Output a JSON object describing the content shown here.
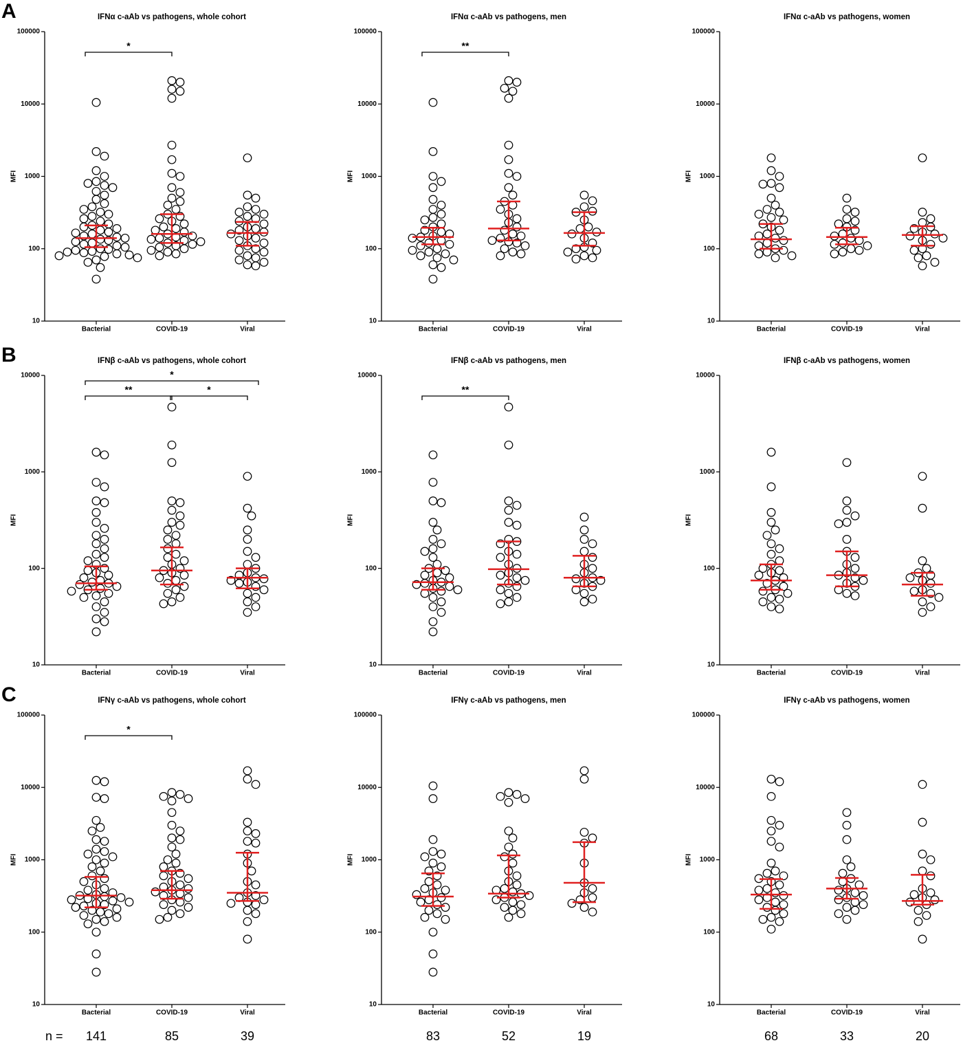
{
  "panels": [
    "A",
    "B",
    "C"
  ],
  "n_label": "n =",
  "counts": [
    [
      141,
      85,
      39
    ],
    [
      83,
      52,
      19
    ],
    [
      68,
      33,
      20
    ]
  ],
  "chart_data": [
    {
      "type": "dotplot",
      "title": "IFNα c-aAb vs pathogens, whole cohort",
      "ylabel": "MFI",
      "log": true,
      "ylim": [
        10,
        100000
      ],
      "yticks": [
        10,
        100,
        1000,
        10000,
        100000
      ],
      "categories": [
        "Bacterial",
        "COVID-19",
        "Viral"
      ],
      "summary_color": "#e02020",
      "values": [
        [
          10500,
          2200,
          1900,
          1200,
          1000,
          850,
          800,
          750,
          700,
          620,
          550,
          480,
          420,
          380,
          350,
          320,
          300,
          280,
          260,
          240,
          220,
          210,
          200,
          190,
          180,
          170,
          165,
          160,
          150,
          145,
          140,
          135,
          130,
          125,
          120,
          115,
          110,
          105,
          100,
          98,
          95,
          92,
          90,
          88,
          85,
          82,
          80,
          78,
          75,
          70,
          65,
          55,
          38
        ],
        [
          21000,
          20000,
          16000,
          15000,
          12000,
          2700,
          1700,
          1100,
          1000,
          700,
          600,
          500,
          450,
          400,
          350,
          300,
          280,
          260,
          240,
          220,
          200,
          190,
          180,
          170,
          160,
          150,
          145,
          140,
          135,
          130,
          125,
          120,
          115,
          110,
          105,
          100,
          95,
          90,
          85,
          80
        ],
        [
          1800,
          550,
          500,
          380,
          350,
          320,
          300,
          280,
          260,
          240,
          220,
          200,
          190,
          180,
          170,
          160,
          150,
          140,
          130,
          120,
          110,
          100,
          95,
          90,
          80,
          75,
          70,
          65,
          60,
          58
        ]
      ],
      "median": [
        140,
        160,
        165
      ],
      "q1": [
        105,
        120,
        110
      ],
      "q3": [
        210,
        300,
        235
      ],
      "annotations": [
        {
          "label": "*",
          "from": 0,
          "to": 1,
          "color": "#000"
        }
      ]
    },
    {
      "type": "dotplot",
      "title": "IFNα c-aAb vs pathogens, men",
      "ylabel": "MFI",
      "log": true,
      "ylim": [
        10,
        100000
      ],
      "yticks": [
        10,
        100,
        1000,
        10000,
        100000
      ],
      "categories": [
        "Bacterial",
        "COVID-19",
        "Viral"
      ],
      "summary_color": "#e02020",
      "values": [
        [
          10500,
          2200,
          1000,
          850,
          700,
          480,
          400,
          350,
          300,
          270,
          250,
          220,
          200,
          180,
          170,
          160,
          150,
          145,
          140,
          130,
          120,
          115,
          110,
          100,
          95,
          90,
          85,
          80,
          75,
          70,
          60,
          55,
          38
        ],
        [
          21000,
          20000,
          16500,
          15000,
          12000,
          2700,
          1700,
          1100,
          1000,
          700,
          550,
          450,
          400,
          350,
          300,
          260,
          230,
          200,
          180,
          160,
          150,
          140,
          130,
          125,
          120,
          110,
          100,
          90,
          85,
          80
        ],
        [
          550,
          460,
          380,
          330,
          320,
          250,
          200,
          190,
          170,
          160,
          140,
          120,
          105,
          100,
          95,
          90,
          80,
          75,
          72
        ]
      ],
      "median": [
        145,
        190,
        165
      ],
      "q1": [
        115,
        130,
        110
      ],
      "q3": [
        195,
        450,
        320
      ],
      "annotations": [
        {
          "label": "**",
          "from": 0,
          "to": 1,
          "color": "#000"
        }
      ]
    },
    {
      "type": "dotplot",
      "title": "IFNα c-aAb vs pathogens, women",
      "ylabel": "MFI",
      "log": true,
      "ylim": [
        10,
        100000
      ],
      "yticks": [
        10,
        100,
        1000,
        10000,
        100000
      ],
      "categories": [
        "Bacterial",
        "COVID-19",
        "Viral"
      ],
      "summary_color": "#e02020",
      "values": [
        [
          1800,
          1200,
          1000,
          800,
          780,
          700,
          500,
          400,
          350,
          320,
          300,
          270,
          250,
          220,
          200,
          180,
          160,
          150,
          140,
          130,
          120,
          110,
          100,
          95,
          90,
          85,
          80,
          75
        ],
        [
          500,
          350,
          320,
          260,
          240,
          220,
          200,
          180,
          160,
          150,
          140,
          130,
          120,
          115,
          110,
          100,
          95,
          90,
          85
        ],
        [
          1800,
          320,
          260,
          230,
          200,
          190,
          170,
          160,
          150,
          140,
          130,
          115,
          100,
          95,
          80,
          75,
          65,
          58
        ]
      ],
      "median": [
        135,
        145,
        155
      ],
      "q1": [
        100,
        115,
        110
      ],
      "q3": [
        220,
        195,
        205
      ],
      "annotations": []
    },
    {
      "type": "dotplot",
      "title": "IFNβ c-aAb vs pathogens, whole cohort",
      "ylabel": "MFI",
      "log": true,
      "ylim": [
        10,
        10000
      ],
      "yticks": [
        10,
        100,
        1000,
        10000
      ],
      "categories": [
        "Bacterial",
        "COVID-19",
        "Viral"
      ],
      "summary_color": "#e02020",
      "values": [
        [
          1600,
          1500,
          780,
          700,
          500,
          480,
          380,
          300,
          260,
          220,
          200,
          180,
          160,
          140,
          130,
          120,
          110,
          100,
          95,
          90,
          85,
          80,
          75,
          72,
          70,
          68,
          65,
          62,
          60,
          58,
          55,
          52,
          50,
          45,
          40,
          35,
          30,
          28,
          22
        ],
        [
          4700,
          1900,
          1250,
          500,
          480,
          400,
          350,
          300,
          280,
          250,
          220,
          200,
          180,
          160,
          140,
          130,
          120,
          110,
          100,
          95,
          90,
          85,
          80,
          75,
          70,
          65,
          60,
          55,
          50,
          45,
          43
        ],
        [
          900,
          420,
          350,
          250,
          200,
          150,
          130,
          110,
          100,
          90,
          85,
          80,
          78,
          75,
          72,
          70,
          65,
          60,
          55,
          50,
          45,
          40,
          35
        ]
      ],
      "median": [
        70,
        95,
        80
      ],
      "q1": [
        60,
        68,
        62
      ],
      "q3": [
        105,
        165,
        100
      ],
      "annotations": [
        {
          "label": "**",
          "from": 0,
          "to": 1,
          "color": "#000"
        },
        {
          "label": "*",
          "from": 1,
          "to": 2,
          "color": "#000"
        },
        {
          "label": "*",
          "from": 0,
          "to": 2,
          "color": "#d62728"
        }
      ]
    },
    {
      "type": "dotplot",
      "title": "IFNβ c-aAb vs pathogens, men",
      "ylabel": "MFI",
      "log": true,
      "ylim": [
        10,
        10000
      ],
      "yticks": [
        10,
        100,
        1000,
        10000
      ],
      "categories": [
        "Bacterial",
        "COVID-19",
        "Viral"
      ],
      "summary_color": "#e02020",
      "values": [
        [
          1500,
          780,
          500,
          480,
          300,
          250,
          200,
          180,
          160,
          150,
          130,
          110,
          100,
          95,
          90,
          85,
          80,
          75,
          72,
          70,
          68,
          65,
          62,
          60,
          58,
          55,
          50,
          45,
          40,
          35,
          28,
          22
        ],
        [
          4700,
          1900,
          500,
          450,
          400,
          300,
          280,
          200,
          190,
          180,
          150,
          140,
          130,
          110,
          100,
          90,
          85,
          80,
          75,
          70,
          65,
          60,
          55,
          50,
          45,
          43
        ],
        [
          340,
          250,
          200,
          180,
          150,
          130,
          110,
          100,
          90,
          80,
          78,
          75,
          70,
          65,
          60,
          55,
          48,
          45
        ]
      ],
      "median": [
        72,
        98,
        80
      ],
      "q1": [
        60,
        68,
        65
      ],
      "q3": [
        100,
        190,
        135
      ],
      "annotations": [
        {
          "label": "**",
          "from": 0,
          "to": 1,
          "color": "#000"
        }
      ]
    },
    {
      "type": "dotplot",
      "title": "IFNβ c-aAb vs pathogens, women",
      "ylabel": "MFI",
      "log": true,
      "ylim": [
        10,
        10000
      ],
      "yticks": [
        10,
        100,
        1000,
        10000
      ],
      "categories": [
        "Bacterial",
        "COVID-19",
        "Viral"
      ],
      "summary_color": "#e02020",
      "values": [
        [
          1600,
          700,
          380,
          300,
          250,
          220,
          180,
          160,
          140,
          120,
          110,
          100,
          95,
          90,
          85,
          80,
          75,
          70,
          65,
          60,
          58,
          55,
          50,
          48,
          45,
          40,
          38
        ],
        [
          1250,
          500,
          400,
          350,
          300,
          290,
          200,
          150,
          130,
          110,
          100,
          90,
          85,
          80,
          75,
          70,
          65,
          60,
          55,
          52
        ],
        [
          900,
          420,
          120,
          100,
          90,
          85,
          80,
          75,
          70,
          60,
          58,
          55,
          50,
          45,
          40,
          35
        ]
      ],
      "median": [
        75,
        85,
        68
      ],
      "q1": [
        60,
        65,
        52
      ],
      "q3": [
        110,
        150,
        90
      ],
      "annotations": []
    },
    {
      "type": "dotplot",
      "title": "IFNγ c-aAb vs pathogens, whole cohort",
      "ylabel": "MFI",
      "log": true,
      "ylim": [
        10,
        100000
      ],
      "yticks": [
        10,
        100,
        1000,
        10000,
        100000
      ],
      "categories": [
        "Bacterial",
        "COVID-19",
        "Viral"
      ],
      "summary_color": "#e02020",
      "values": [
        [
          12500,
          12000,
          7300,
          7000,
          3500,
          2800,
          2500,
          1900,
          1800,
          1400,
          1300,
          1200,
          1100,
          1000,
          900,
          800,
          700,
          600,
          550,
          500,
          450,
          400,
          380,
          350,
          330,
          320,
          310,
          300,
          290,
          280,
          270,
          260,
          250,
          240,
          230,
          220,
          210,
          200,
          190,
          180,
          170,
          160,
          150,
          140,
          130,
          100,
          50,
          28
        ],
        [
          8500,
          8000,
          7500,
          7000,
          6500,
          4500,
          3000,
          2500,
          2000,
          1900,
          1500,
          1200,
          1000,
          900,
          800,
          700,
          650,
          600,
          550,
          500,
          450,
          420,
          400,
          380,
          360,
          340,
          320,
          300,
          280,
          260,
          240,
          220,
          200,
          180,
          160,
          150
        ],
        [
          17000,
          13000,
          11000,
          3300,
          2500,
          2300,
          1800,
          1700,
          1200,
          900,
          700,
          500,
          450,
          350,
          320,
          300,
          280,
          260,
          250,
          240,
          200,
          180,
          140,
          80
        ]
      ],
      "median": [
        320,
        380,
        350
      ],
      "q1": [
        220,
        290,
        270
      ],
      "q3": [
        580,
        700,
        1250
      ],
      "annotations": [
        {
          "label": "*",
          "from": 0,
          "to": 1,
          "color": "#000"
        }
      ]
    },
    {
      "type": "dotplot",
      "title": "IFNγ c-aAb vs pathogens, men",
      "ylabel": "MFI",
      "log": true,
      "ylim": [
        10,
        100000
      ],
      "yticks": [
        10,
        100,
        1000,
        10000,
        100000
      ],
      "categories": [
        "Bacterial",
        "COVID-19",
        "Viral"
      ],
      "summary_color": "#e02020",
      "values": [
        [
          10500,
          7000,
          1900,
          1300,
          1200,
          1100,
          900,
          800,
          700,
          600,
          500,
          450,
          400,
          380,
          350,
          330,
          300,
          280,
          260,
          240,
          220,
          200,
          180,
          160,
          150,
          100,
          50,
          28
        ],
        [
          8500,
          8000,
          7500,
          7000,
          6200,
          2500,
          2000,
          1500,
          1200,
          1100,
          900,
          700,
          600,
          500,
          450,
          400,
          380,
          360,
          340,
          320,
          300,
          280,
          260,
          240,
          220,
          200,
          180,
          160
        ],
        [
          17000,
          13000,
          2400,
          2000,
          1700,
          900,
          480,
          400,
          350,
          300,
          280,
          250,
          220,
          190
        ]
      ],
      "median": [
        310,
        340,
        480
      ],
      "q1": [
        230,
        300,
        260
      ],
      "q3": [
        650,
        1150,
        1750
      ],
      "annotations": []
    },
    {
      "type": "dotplot",
      "title": "IFNγ c-aAb vs pathogens, women",
      "ylabel": "MFI",
      "log": true,
      "ylim": [
        10,
        100000
      ],
      "yticks": [
        10,
        100,
        1000,
        10000,
        100000
      ],
      "categories": [
        "Bacterial",
        "COVID-19",
        "Viral"
      ],
      "summary_color": "#e02020",
      "values": [
        [
          13000,
          12000,
          7500,
          3500,
          3000,
          2500,
          1800,
          1500,
          900,
          700,
          650,
          600,
          550,
          500,
          450,
          400,
          380,
          350,
          320,
          300,
          280,
          260,
          240,
          220,
          200,
          180,
          160,
          150,
          140,
          110
        ],
        [
          4500,
          3000,
          1900,
          1000,
          800,
          650,
          550,
          500,
          450,
          400,
          380,
          350,
          320,
          300,
          280,
          260,
          240,
          220,
          200,
          180,
          150
        ],
        [
          11000,
          3300,
          1200,
          1000,
          700,
          600,
          400,
          350,
          330,
          300,
          280,
          260,
          240,
          200,
          170,
          140,
          80
        ]
      ],
      "median": [
        330,
        400,
        270
      ],
      "q1": [
        210,
        290,
        240
      ],
      "q3": [
        540,
        560,
        620
      ],
      "annotations": []
    }
  ]
}
